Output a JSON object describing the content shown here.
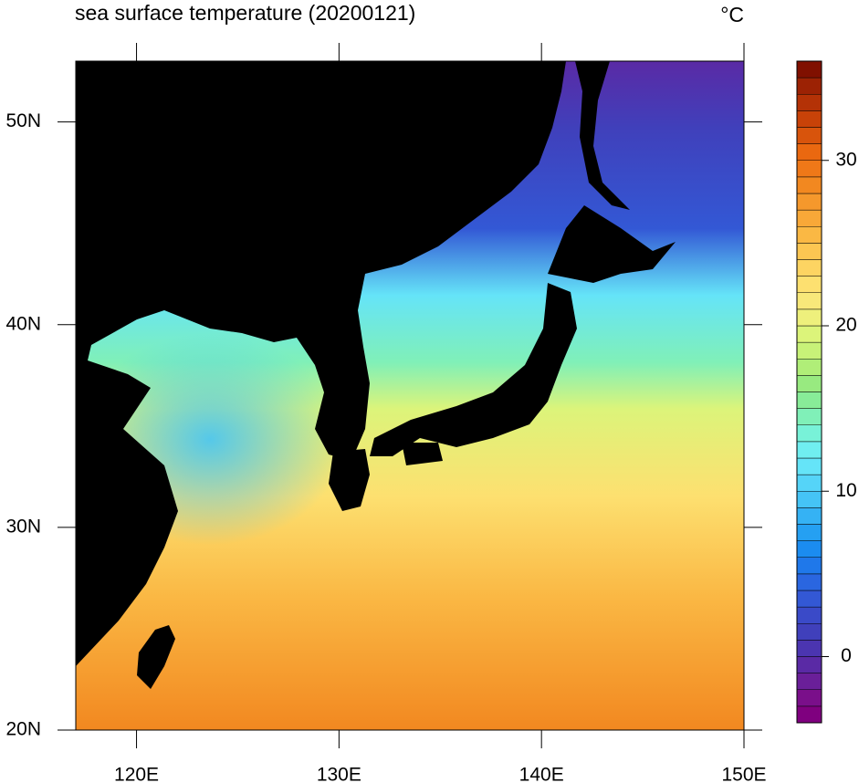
{
  "chart_data": {
    "type": "map",
    "title": "sea surface temperature (20200121)",
    "unit": "°C",
    "xlim": [
      117,
      150
    ],
    "ylim": [
      20,
      53
    ],
    "xticks": [
      {
        "value": 120,
        "label": "120E"
      },
      {
        "value": 130,
        "label": "130E"
      },
      {
        "value": 140,
        "label": "140E"
      },
      {
        "value": 150,
        "label": "150E"
      }
    ],
    "yticks": [
      {
        "value": 20,
        "label": "20N"
      },
      {
        "value": 30,
        "label": "30N"
      },
      {
        "value": 40,
        "label": "40N"
      },
      {
        "value": 50,
        "label": "50N"
      }
    ],
    "colorbar": {
      "lim": [
        -4,
        36
      ],
      "ticks": [
        0,
        10,
        20,
        30
      ],
      "colors": [
        "#7f007f",
        "#7a0f8a",
        "#6a1f99",
        "#5a2aa5",
        "#4b35b0",
        "#4040bb",
        "#3a4ac8",
        "#3358d5",
        "#2a66e0",
        "#1f78ea",
        "#1b8cf0",
        "#25a0f2",
        "#35b2f4",
        "#45c4f6",
        "#55d4f8",
        "#65e4f8",
        "#70eef0",
        "#78f2d8",
        "#80f0b8",
        "#88ec98",
        "#98ea80",
        "#b0ee78",
        "#c8f278",
        "#dcf47a",
        "#eef07c",
        "#f8e87a",
        "#fde070",
        "#fdd462",
        "#fcc652",
        "#fab844",
        "#f8a838",
        "#f5982c",
        "#f28820",
        "#ef7818",
        "#ea6810",
        "#d8540c",
        "#c84208",
        "#b43206",
        "#9c2204",
        "#801000"
      ]
    }
  }
}
